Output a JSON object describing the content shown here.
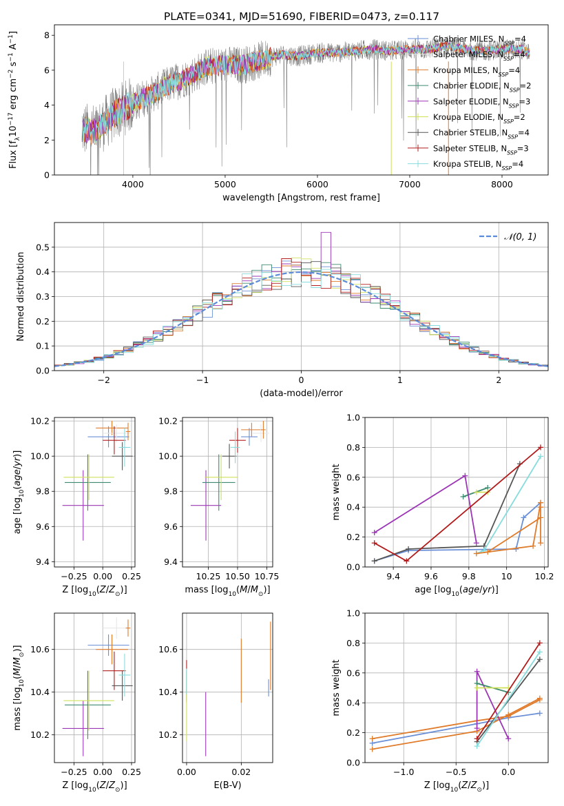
{
  "figure_title": "PLATE=0341, MJD=51690, FIBERID=0473, z=0.117",
  "colors": {
    "Chabrier MILES": "#6a8fd6",
    "Salpeter MILES": "#e8e8e8",
    "Kroupa MILES": "#e07b2a",
    "Chabrier ELODIE": "#3d8a6f",
    "Salpeter ELODIE": "#9b35b5",
    "Kroupa ELODIE": "#cfe05a",
    "Chabrier STELIB": "#555555",
    "Salpeter STELIB": "#b11b1b",
    "Kroupa STELIB": "#86dcdc",
    "data_gray": "#7f7f7f",
    "normal_curve": "#5b8bd8",
    "grid": "#b0b0b0"
  },
  "chart_data": [
    {
      "id": "spectrum",
      "type": "line",
      "title": "PLATE=0341, MJD=51690, FIBERID=0473, z=0.117",
      "xlabel": "wavelength [Angstrom, rest frame]",
      "ylabel": "Flux [f_λ 10⁻¹⁷ erg cm⁻² s⁻¹ A⁻¹]",
      "xlim": [
        3150,
        8500
      ],
      "ylim": [
        0,
        8.6
      ],
      "xticks": [
        4000,
        5000,
        6000,
        7000,
        8000
      ],
      "yticks": [
        0,
        2,
        4,
        6,
        8
      ],
      "grid": false,
      "legend_position": "top-right",
      "legend": [
        {
          "name": "Chabrier MILES",
          "n_ssp": "4"
        },
        {
          "name": "Salpeter MILES",
          "n_ssp": "4"
        },
        {
          "name": "Kroupa MILES",
          "n_ssp": "4"
        },
        {
          "name": "Chabrier ELODIE",
          "n_ssp": "2"
        },
        {
          "name": "Salpeter ELODIE",
          "n_ssp": "3"
        },
        {
          "name": "Kroupa ELODIE",
          "n_ssp": "2"
        },
        {
          "name": "Chabrier STELIB",
          "n_ssp": "4"
        },
        {
          "name": "Salpeter STELIB",
          "n_ssp": "3"
        },
        {
          "name": "Kroupa STELIB",
          "n_ssp": "4"
        }
      ],
      "data_envelope": {
        "x": [
          3450,
          3600,
          3800,
          4000,
          4200,
          4400,
          4600,
          4800,
          5000,
          5200,
          5400,
          5600,
          5800,
          6000,
          6200,
          6400,
          6600,
          6800,
          7000,
          7200,
          7400,
          7600,
          7800,
          8000,
          8200,
          8300
        ],
        "y": [
          2.6,
          2.5,
          3.5,
          4.1,
          4.6,
          5.2,
          5.6,
          6.2,
          6.3,
          6.3,
          6.6,
          6.9,
          6.8,
          7.0,
          7.0,
          7.1,
          7.2,
          7.1,
          7.2,
          7.2,
          7.4,
          7.2,
          7.1,
          7.2,
          7.2,
          7.0
        ]
      }
    },
    {
      "id": "residuals",
      "type": "line",
      "xlabel": "(data-model)/error",
      "ylabel": "Normed distribution",
      "xlim": [
        -2.5,
        2.5
      ],
      "ylim": [
        0,
        0.6
      ],
      "xticks": [
        -2,
        -1,
        0,
        1,
        2
      ],
      "xtick_labels": [
        "−2",
        "−1",
        "0",
        "1",
        "2"
      ],
      "yticks": [
        0,
        0.1,
        0.2,
        0.3,
        0.4,
        0.5
      ],
      "grid": true,
      "legend_position": "top-right",
      "normal_curve_label": "𝒩(0, 1)",
      "bin_width": 0.1,
      "spike": {
        "x": 0.25,
        "value": 0.56,
        "series": "Salpeter ELODIE"
      }
    },
    {
      "id": "age_vs_Z",
      "type": "scatter",
      "xlabel": "Z [log10(Z/Z⊙)]",
      "ylabel": "age  [log10(age/yr)]",
      "xlim": [
        -0.42,
        0.28
      ],
      "ylim": [
        9.37,
        10.22
      ],
      "xticks": [
        -0.25,
        0,
        0.25
      ],
      "xtick_labels": [
        "−0.25",
        "0.00",
        "0.25"
      ],
      "yticks": [
        9.4,
        9.6,
        9.8,
        10.0,
        10.2
      ],
      "grid": true,
      "points": [
        {
          "series": "Chabrier MILES",
          "x": 0.05,
          "y": 10.11,
          "xerr": 0.18,
          "yerr": 0.06
        },
        {
          "series": "Kroupa MILES",
          "x": 0.08,
          "y": 10.16,
          "xerr": 0.14,
          "yerr": 0.04
        },
        {
          "series": "Salpeter MILES",
          "x": 0.12,
          "y": 10.13,
          "xerr": 0.12,
          "yerr": 0.05
        },
        {
          "series": "Salpeter STELIB",
          "x": 0.1,
          "y": 10.09,
          "xerr": 0.1,
          "yerr": 0.08
        },
        {
          "series": "Chabrier STELIB",
          "x": 0.17,
          "y": 10.0,
          "xerr": 0.09,
          "yerr": 0.08
        },
        {
          "series": "Kroupa STELIB",
          "x": 0.19,
          "y": 10.05,
          "xerr": 0.05,
          "yerr": 0.11
        },
        {
          "series": "Salpeter ELODIE",
          "x": -0.17,
          "y": 9.72,
          "xerr": 0.18,
          "yerr": 0.2
        },
        {
          "series": "Chabrier ELODIE",
          "x": -0.13,
          "y": 9.85,
          "xerr": 0.2,
          "yerr": 0.16
        },
        {
          "series": "Kroupa ELODIE",
          "x": -0.12,
          "y": 9.88,
          "xerr": 0.22,
          "yerr": 0.13
        },
        {
          "series": "Kroupa MILES",
          "x": 0.22,
          "y": 10.14,
          "xerr": 0.02,
          "yerr": 0.05
        }
      ]
    },
    {
      "id": "age_vs_mass",
      "type": "scatter",
      "xlabel": "mass [log10(M/M⊙)]",
      "ylabel": "",
      "xlim": [
        10.03,
        10.8
      ],
      "ylim": [
        9.37,
        10.22
      ],
      "xticks": [
        10.25,
        10.5,
        10.75
      ],
      "xtick_labels": [
        "10.25",
        "10.50",
        "10.75"
      ],
      "yticks": [
        9.4,
        9.6,
        9.8,
        10.0,
        10.2
      ],
      "grid": true,
      "points": [
        {
          "series": "Chabrier MILES",
          "x": 10.6,
          "y": 10.11,
          "xerr": 0.07,
          "yerr": 0.05
        },
        {
          "series": "Kroupa MILES",
          "x": 10.62,
          "y": 10.15,
          "xerr": 0.09,
          "yerr": 0.04
        },
        {
          "series": "Salpeter MILES",
          "x": 10.7,
          "y": 10.13,
          "xerr": 0.07,
          "yerr": 0.05
        },
        {
          "series": "Salpeter STELIB",
          "x": 10.5,
          "y": 10.09,
          "xerr": 0.07,
          "yerr": 0.07
        },
        {
          "series": "Chabrier STELIB",
          "x": 10.43,
          "y": 10.0,
          "xerr": 0.06,
          "yerr": 0.07
        },
        {
          "series": "Kroupa STELIB",
          "x": 10.48,
          "y": 10.05,
          "xerr": 0.04,
          "yerr": 0.09
        },
        {
          "series": "Salpeter ELODIE",
          "x": 10.23,
          "y": 9.72,
          "xerr": 0.13,
          "yerr": 0.2
        },
        {
          "series": "Chabrier ELODIE",
          "x": 10.34,
          "y": 9.85,
          "xerr": 0.14,
          "yerr": 0.16
        },
        {
          "series": "Kroupa ELODIE",
          "x": 10.36,
          "y": 9.88,
          "xerr": 0.14,
          "yerr": 0.13
        },
        {
          "series": "Kroupa MILES",
          "x": 10.72,
          "y": 10.15,
          "xerr": 0.02,
          "yerr": 0.05
        }
      ]
    },
    {
      "id": "mass_weight_vs_age",
      "type": "line",
      "xlabel": "age  [log10(age/yr)]",
      "ylabel": "mass weight",
      "xlim": [
        9.25,
        10.22
      ],
      "ylim": [
        0,
        1.0
      ],
      "xticks": [
        9.4,
        9.6,
        9.8,
        10.0,
        10.2
      ],
      "yticks": [
        0,
        0.2,
        0.4,
        0.6,
        0.8,
        1.0
      ],
      "grid": true,
      "series": [
        {
          "name": "Chabrier MILES",
          "x": [
            9.3,
            9.48,
            10.05,
            10.09,
            10.18
          ],
          "y": [
            0.04,
            0.11,
            0.12,
            0.33,
            0.43
          ]
        },
        {
          "name": "Kroupa MILES",
          "x": [
            9.9,
            10.18,
            10.18,
            10.18
          ],
          "y": [
            0.1,
            0.33,
            0.4,
            0.16
          ]
        },
        {
          "name": "Chabrier ELODIE",
          "x": [
            9.77,
            9.9
          ],
          "y": [
            0.47,
            0.53
          ]
        },
        {
          "name": "Salpeter ELODIE",
          "x": [
            9.3,
            9.78,
            9.84
          ],
          "y": [
            0.23,
            0.61,
            0.16
          ]
        },
        {
          "name": "Kroupa ELODIE",
          "x": [
            9.84,
            9.9
          ],
          "y": [
            0.5,
            0.5
          ]
        },
        {
          "name": "Chabrier STELIB",
          "x": [
            9.3,
            9.48,
            9.88,
            10.07
          ],
          "y": [
            0.04,
            0.12,
            0.14,
            0.69
          ]
        },
        {
          "name": "Salpeter STELIB",
          "x": [
            9.3,
            9.47,
            10.18
          ],
          "y": [
            0.16,
            0.04,
            0.8
          ]
        },
        {
          "name": "Kroupa STELIB",
          "x": [
            9.84,
            9.88,
            10.18
          ],
          "y": [
            0.09,
            0.11,
            0.74
          ]
        },
        {
          "name": "Kroupa MILES",
          "x": [
            9.84,
            10.14,
            10.18
          ],
          "y": [
            0.09,
            0.14,
            0.43
          ]
        }
      ]
    },
    {
      "id": "mass_vs_Z",
      "type": "scatter",
      "xlabel": "Z [log10(Z/Z⊙)]",
      "ylabel": "mass [log10(M/M⊙)]",
      "xlim": [
        -0.42,
        0.28
      ],
      "ylim": [
        10.07,
        10.77
      ],
      "xticks": [
        -0.25,
        0,
        0.25
      ],
      "xtick_labels": [
        "−0.25",
        "0.00",
        "0.25"
      ],
      "yticks": [
        10.2,
        10.4,
        10.6
      ],
      "grid": true,
      "points": [
        {
          "series": "Chabrier MILES",
          "x": 0.05,
          "y": 10.62,
          "xerr": 0.18,
          "yerr": 0.05
        },
        {
          "series": "Kroupa MILES",
          "x": 0.08,
          "y": 10.6,
          "xerr": 0.14,
          "yerr": 0.07
        },
        {
          "series": "Salpeter MILES",
          "x": 0.12,
          "y": 10.7,
          "xerr": 0.12,
          "yerr": 0.05
        },
        {
          "series": "Salpeter STELIB",
          "x": 0.1,
          "y": 10.5,
          "xerr": 0.1,
          "yerr": 0.09
        },
        {
          "series": "Chabrier STELIB",
          "x": 0.17,
          "y": 10.43,
          "xerr": 0.09,
          "yerr": 0.07
        },
        {
          "series": "Kroupa STELIB",
          "x": 0.19,
          "y": 10.48,
          "xerr": 0.05,
          "yerr": 0.1
        },
        {
          "series": "Salpeter ELODIE",
          "x": -0.17,
          "y": 10.23,
          "xerr": 0.18,
          "yerr": 0.13
        },
        {
          "series": "Chabrier ELODIE",
          "x": -0.13,
          "y": 10.34,
          "xerr": 0.2,
          "yerr": 0.16
        },
        {
          "series": "Kroupa ELODIE",
          "x": -0.12,
          "y": 10.36,
          "xerr": 0.22,
          "yerr": 0.14
        },
        {
          "series": "Kroupa MILES",
          "x": 0.22,
          "y": 10.7,
          "xerr": 0.02,
          "yerr": 0.04
        }
      ]
    },
    {
      "id": "mass_vs_ebv",
      "type": "scatter",
      "xlabel": "E(B-V)",
      "ylabel": "",
      "xlim": [
        -0.0015,
        0.0315
      ],
      "ylim": [
        10.07,
        10.77
      ],
      "xticks": [
        0.0,
        0.02
      ],
      "xtick_labels": [
        "0.00",
        "0.02"
      ],
      "yticks": [
        10.2,
        10.4,
        10.6
      ],
      "grid": true,
      "points": [
        {
          "series": "Salpeter STELIB",
          "x": 0.0,
          "y": 10.45,
          "xerr": 0,
          "yerr": 0.1
        },
        {
          "series": "Chabrier ELODIE",
          "x": 0.0,
          "y": 10.43,
          "xerr": 0,
          "yerr": 0.07
        },
        {
          "series": "Kroupa ELODIE",
          "x": 0.0,
          "y": 10.33,
          "xerr": 0,
          "yerr": 0.16
        },
        {
          "series": "Kroupa STELIB",
          "x": 0.0,
          "y": 10.45,
          "xerr": 0,
          "yerr": 0.06
        },
        {
          "series": "Salpeter ELODIE",
          "x": 0.007,
          "y": 10.25,
          "xerr": 0,
          "yerr": 0.15
        },
        {
          "series": "Kroupa MILES",
          "x": 0.02,
          "y": 10.5,
          "xerr": 0,
          "yerr": 0.15
        },
        {
          "series": "Chabrier MILES",
          "x": 0.03,
          "y": 10.42,
          "xerr": 0,
          "yerr": 0.04
        },
        {
          "series": "Kroupa MILES",
          "x": 0.0307,
          "y": 10.57,
          "xerr": 0,
          "yerr": 0.16
        }
      ]
    },
    {
      "id": "mass_weight_vs_Z",
      "type": "line",
      "xlabel": "Z [log10(Z/Z⊙)]",
      "ylabel": "mass weight",
      "xlim": [
        -1.37,
        0.38
      ],
      "ylim": [
        0,
        1.0
      ],
      "xticks": [
        -1.0,
        -0.5,
        0.0
      ],
      "xtick_labels": [
        "−1.0",
        "−0.5",
        "0.0"
      ],
      "yticks": [
        0,
        0.2,
        0.4,
        0.6,
        0.8,
        1.0
      ],
      "grid": true,
      "series": [
        {
          "name": "Chabrier MILES",
          "x": [
            -1.3,
            -0.3,
            0.0,
            0.3
          ],
          "y": [
            0.13,
            0.26,
            0.3,
            0.33
          ]
        },
        {
          "name": "Kroupa MILES",
          "x": [
            -1.3,
            -0.3,
            0.0,
            0.3
          ],
          "y": [
            0.16,
            0.28,
            0.31,
            0.42
          ]
        },
        {
          "name": "Kroupa MILES",
          "x": [
            -1.3,
            -0.3,
            0.0,
            0.3
          ],
          "y": [
            0.09,
            0.21,
            0.32,
            0.43
          ]
        },
        {
          "name": "Salpeter ELODIE",
          "x": [
            -0.3,
            -0.3,
            0.0
          ],
          "y": [
            0.23,
            0.61,
            0.16
          ]
        },
        {
          "name": "Chabrier ELODIE",
          "x": [
            -0.3,
            0.0
          ],
          "y": [
            0.53,
            0.47
          ]
        },
        {
          "name": "Kroupa ELODIE",
          "x": [
            -0.3,
            0.0
          ],
          "y": [
            0.5,
            0.5
          ]
        },
        {
          "name": "Chabrier STELIB",
          "x": [
            -0.3,
            0.3
          ],
          "y": [
            0.14,
            0.69
          ]
        },
        {
          "name": "Salpeter STELIB",
          "x": [
            -0.3,
            0.3
          ],
          "y": [
            0.16,
            0.8
          ]
        },
        {
          "name": "Kroupa STELIB",
          "x": [
            -0.3,
            0.3
          ],
          "y": [
            0.11,
            0.74
          ]
        }
      ]
    }
  ]
}
